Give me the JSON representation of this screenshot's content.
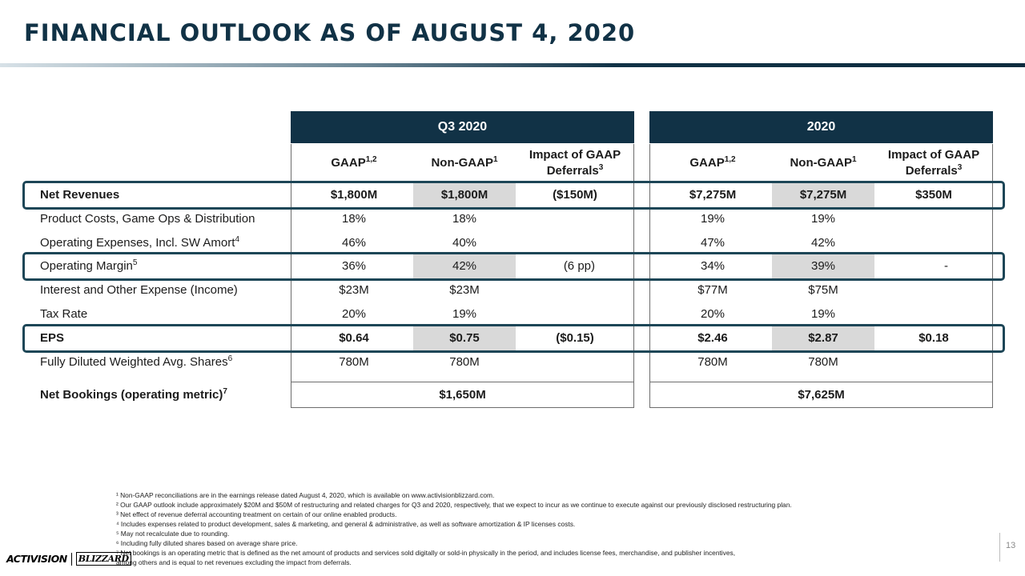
{
  "title": "FINANCIAL OUTLOOK AS OF AUGUST 4, 2020",
  "periods": [
    "Q3 2020",
    "2020"
  ],
  "subheaders": {
    "gaap": "GAAP",
    "gaap_sup": "1,2",
    "nongaap": "Non-GAAP",
    "nongaap_sup": "1",
    "impact_line1": "Impact of GAAP",
    "impact_line2": "Deferrals",
    "impact_sup": "3"
  },
  "rows": [
    {
      "label": "Net Revenues",
      "sup": "",
      "bold": true,
      "highlight": true,
      "q3": [
        "$1,800M",
        "$1,800M",
        "($150M)"
      ],
      "fy": [
        "$7,275M",
        "$7,275M",
        "$350M"
      ]
    },
    {
      "label": "Product Costs, Game Ops & Distribution",
      "sup": "",
      "bold": false,
      "highlight": false,
      "q3": [
        "18%",
        "18%",
        ""
      ],
      "fy": [
        "19%",
        "19%",
        ""
      ]
    },
    {
      "label": "Operating Expenses, Incl. SW Amort",
      "sup": "4",
      "bold": false,
      "highlight": false,
      "q3": [
        "46%",
        "40%",
        ""
      ],
      "fy": [
        "47%",
        "42%",
        ""
      ]
    },
    {
      "label": "Operating Margin",
      "sup": "5",
      "bold": false,
      "highlight": true,
      "q3": [
        "36%",
        "42%",
        "(6 pp)"
      ],
      "fy": [
        "34%",
        "39%",
        "-"
      ]
    },
    {
      "label": "Interest and Other Expense (Income)",
      "sup": "",
      "bold": false,
      "highlight": false,
      "q3": [
        "$23M",
        "$23M",
        ""
      ],
      "fy": [
        "$77M",
        "$75M",
        ""
      ]
    },
    {
      "label": "Tax Rate",
      "sup": "",
      "bold": false,
      "highlight": false,
      "q3": [
        "20%",
        "19%",
        ""
      ],
      "fy": [
        "20%",
        "19%",
        ""
      ]
    },
    {
      "label": "EPS",
      "sup": "",
      "bold": true,
      "highlight": true,
      "q3": [
        "$0.64",
        "$0.75",
        "($0.15)"
      ],
      "fy": [
        "$2.46",
        "$2.87",
        "$0.18"
      ]
    },
    {
      "label": "Fully Diluted Weighted Avg. Shares",
      "sup": "6",
      "bold": false,
      "highlight": false,
      "q3": [
        "780M",
        "780M",
        ""
      ],
      "fy": [
        "780M",
        "780M",
        ""
      ]
    }
  ],
  "net_bookings": {
    "label": "Net Bookings (operating metric)",
    "sup": "7",
    "q3": "$1,650M",
    "fy": "$7,625M"
  },
  "footnotes": [
    "¹ Non-GAAP reconciliations are in the earnings release dated August 4, 2020, which is available on www.activisionblizzard.com.",
    "² Our GAAP outlook include approximately $20M and $50M of restructuring and related charges for Q3 and 2020, respectively, that we expect to incur as we continue to execute against our previously disclosed restructuring plan.",
    "³ Net effect of revenue deferral accounting treatment on certain of our online enabled products.",
    "⁴ Includes expenses related to product development, sales & marketing, and general & administrative, as well as software amortization & IP licenses costs.",
    "⁵ May not recalculate due to rounding.",
    "⁶ Including fully diluted shares based on average share price.",
    "⁷ Net bookings is an operating metric that is defined as the net amount of products and services sold digitally or sold-in physically in the period, and includes license fees, merchandise, and publisher incentives,",
    "among others and is equal to net revenues excluding the impact from deferrals."
  ],
  "logo": {
    "activision": "ACTIVISION",
    "blizzard": "BLIZZARD"
  },
  "page_number": "13",
  "colors": {
    "navy": "#113246",
    "gray_fill": "#d9d9d9",
    "highlight_border": "#1d4657"
  }
}
